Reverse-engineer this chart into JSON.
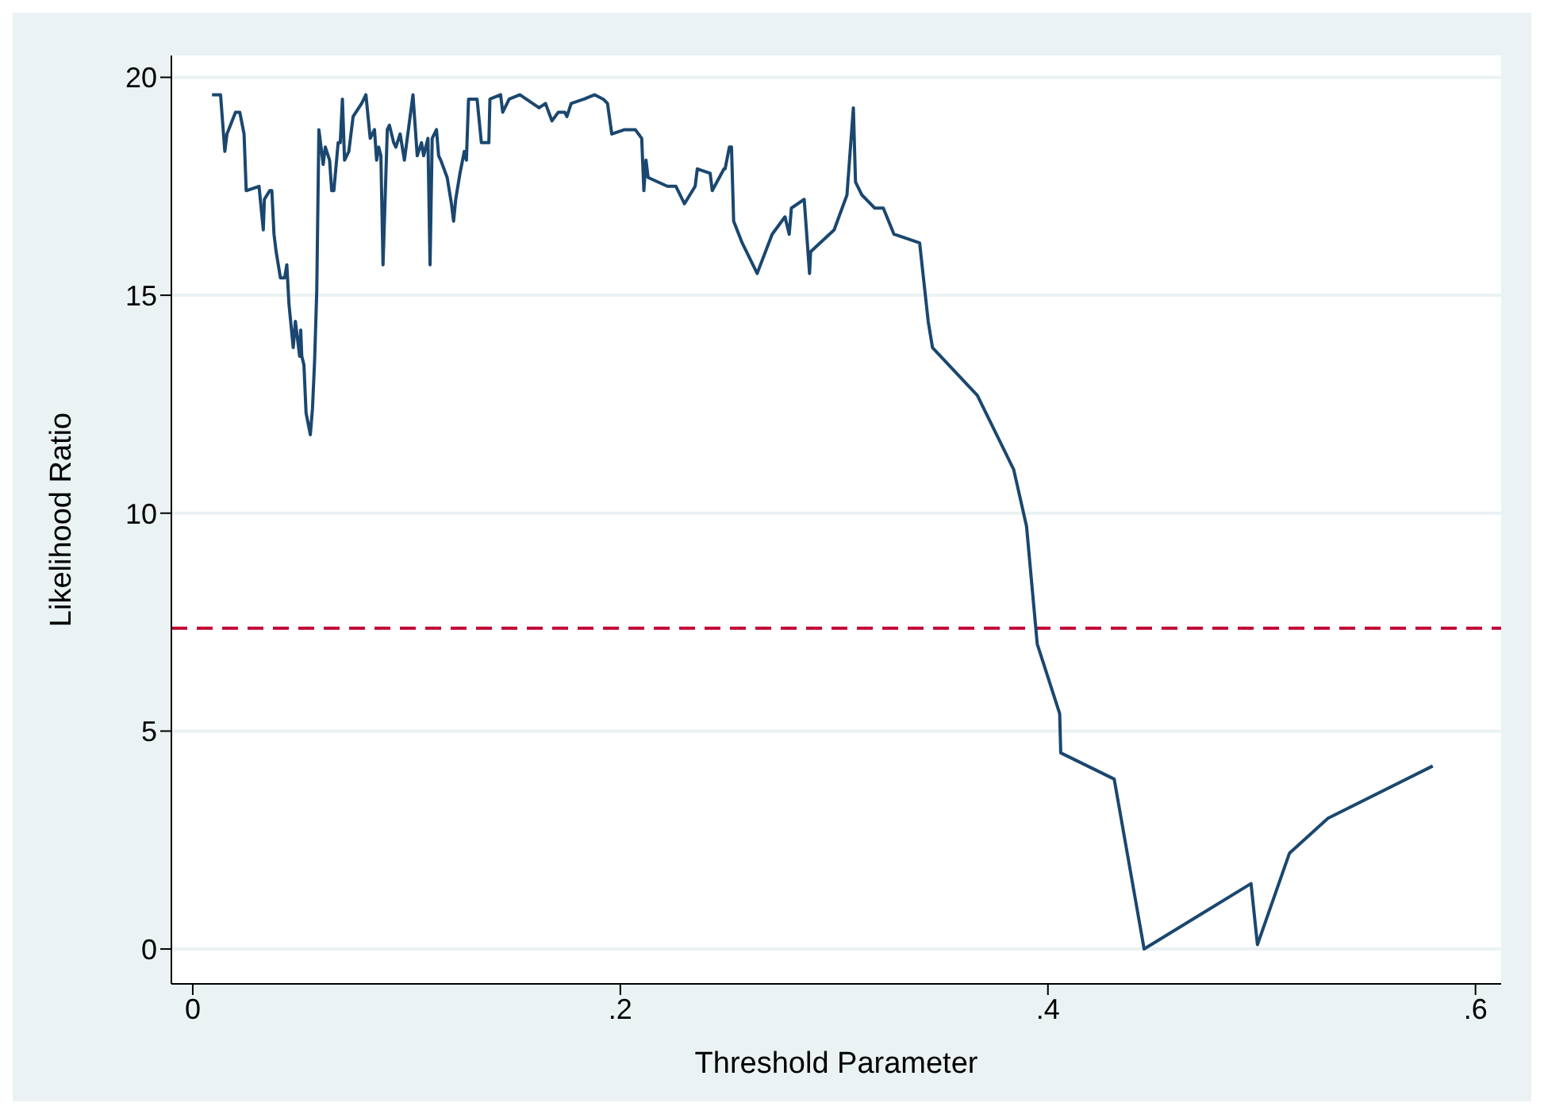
{
  "chart_data": {
    "type": "line",
    "xlabel": "Threshold Parameter",
    "ylabel": "Likelihood Ratio",
    "xlim": [
      -0.01,
      0.612
    ],
    "ylim": [
      -0.8,
      20.5
    ],
    "xticks": [
      0,
      {
        "value": 0.2,
        "label": ".2"
      },
      {
        "value": 0.4,
        "label": ".4"
      },
      {
        "value": 0.6,
        "label": ".6"
      }
    ],
    "yticks": [
      0,
      5,
      10,
      15,
      20
    ],
    "grid": "y",
    "legend": false,
    "marker": "none",
    "line_style": "solid",
    "ref_lines": [
      {
        "axis": "y",
        "value": 7.36,
        "label": null,
        "color": "#c10534",
        "line_style": "dashed"
      }
    ],
    "series": [
      {
        "color": "#1a476f",
        "x": [
          0.009,
          0.013,
          0.015,
          0.016,
          0.02,
          0.022,
          0.024,
          0.025,
          0.031,
          0.033,
          0.0335,
          0.036,
          0.037,
          0.038,
          0.039,
          0.041,
          0.043,
          0.044,
          0.045,
          0.047,
          0.048,
          0.05,
          0.0505,
          0.051,
          0.052,
          0.053,
          0.055,
          0.056,
          0.057,
          0.058,
          0.059,
          0.061,
          0.062,
          0.064,
          0.065,
          0.066,
          0.068,
          0.069,
          0.07,
          0.071,
          0.073,
          0.075,
          0.079,
          0.081,
          0.083,
          0.085,
          0.086,
          0.087,
          0.088,
          0.089,
          0.091,
          0.092,
          0.094,
          0.095,
          0.097,
          0.099,
          0.103,
          0.105,
          0.107,
          0.108,
          0.11,
          0.111,
          0.112,
          0.114,
          0.115,
          0.116,
          0.119,
          0.121,
          0.122,
          0.123,
          0.125,
          0.127,
          0.128,
          0.129,
          0.133,
          0.135,
          0.1385,
          0.139,
          0.144,
          0.145,
          0.148,
          0.153,
          0.162,
          0.165,
          0.168,
          0.171,
          0.174,
          0.175,
          0.177,
          0.183,
          0.188,
          0.192,
          0.194,
          0.196,
          0.202,
          0.203,
          0.207,
          0.21,
          0.211,
          0.212,
          0.213,
          0.222,
          0.226,
          0.23,
          0.235,
          0.236,
          0.242,
          0.243,
          0.2485,
          0.249,
          0.251,
          0.252,
          0.253,
          0.257,
          0.264,
          0.271,
          0.277,
          0.279,
          0.28,
          0.286,
          0.2885,
          0.289,
          0.3,
          0.306,
          0.309,
          0.31,
          0.313,
          0.319,
          0.323,
          0.328,
          0.34,
          0.342,
          0.344,
          0.346,
          0.367,
          0.384,
          0.39,
          0.395,
          0.4055,
          0.406,
          0.431,
          0.445,
          0.495,
          0.498,
          0.513,
          0.531,
          0.58
        ],
        "values": [
          19.6,
          19.6,
          18.3,
          18.7,
          19.2,
          19.2,
          18.7,
          17.4,
          17.5,
          16.5,
          17.2,
          17.4,
          17.4,
          16.4,
          16.0,
          15.4,
          15.4,
          15.7,
          14.8,
          13.8,
          14.4,
          13.6,
          14.2,
          13.6,
          13.4,
          12.3,
          11.8,
          12.4,
          13.5,
          15.1,
          18.8,
          18.0,
          18.4,
          18.1,
          17.4,
          17.4,
          18.5,
          18.5,
          19.5,
          18.1,
          18.3,
          19.1,
          19.4,
          19.6,
          18.6,
          18.8,
          18.1,
          18.4,
          18.2,
          15.7,
          18.8,
          18.9,
          18.5,
          18.4,
          18.7,
          18.1,
          19.6,
          18.2,
          18.5,
          18.2,
          18.6,
          15.7,
          18.6,
          18.8,
          18.2,
          18.1,
          17.7,
          17.1,
          16.7,
          17.2,
          17.8,
          18.3,
          18.1,
          19.5,
          19.5,
          18.5,
          18.5,
          19.5,
          19.6,
          19.2,
          19.5,
          19.6,
          19.3,
          19.4,
          19.0,
          19.2,
          19.2,
          19.1,
          19.4,
          19.5,
          19.6,
          19.5,
          19.4,
          18.7,
          18.8,
          18.8,
          18.8,
          18.6,
          17.4,
          18.1,
          17.7,
          17.5,
          17.5,
          17.1,
          17.5,
          17.9,
          17.8,
          17.4,
          17.9,
          17.9,
          18.4,
          18.4,
          16.7,
          16.2,
          15.5,
          16.4,
          16.8,
          16.4,
          17.0,
          17.2,
          15.5,
          16.0,
          16.5,
          17.3,
          19.3,
          17.6,
          17.3,
          17.0,
          17.0,
          16.4,
          16.2,
          15.3,
          14.4,
          13.8,
          12.7,
          11.0,
          9.7,
          7.0,
          5.4,
          4.5,
          3.9,
          0,
          1.5,
          0.1,
          2.2,
          3.0,
          4.2
        ]
      }
    ]
  }
}
